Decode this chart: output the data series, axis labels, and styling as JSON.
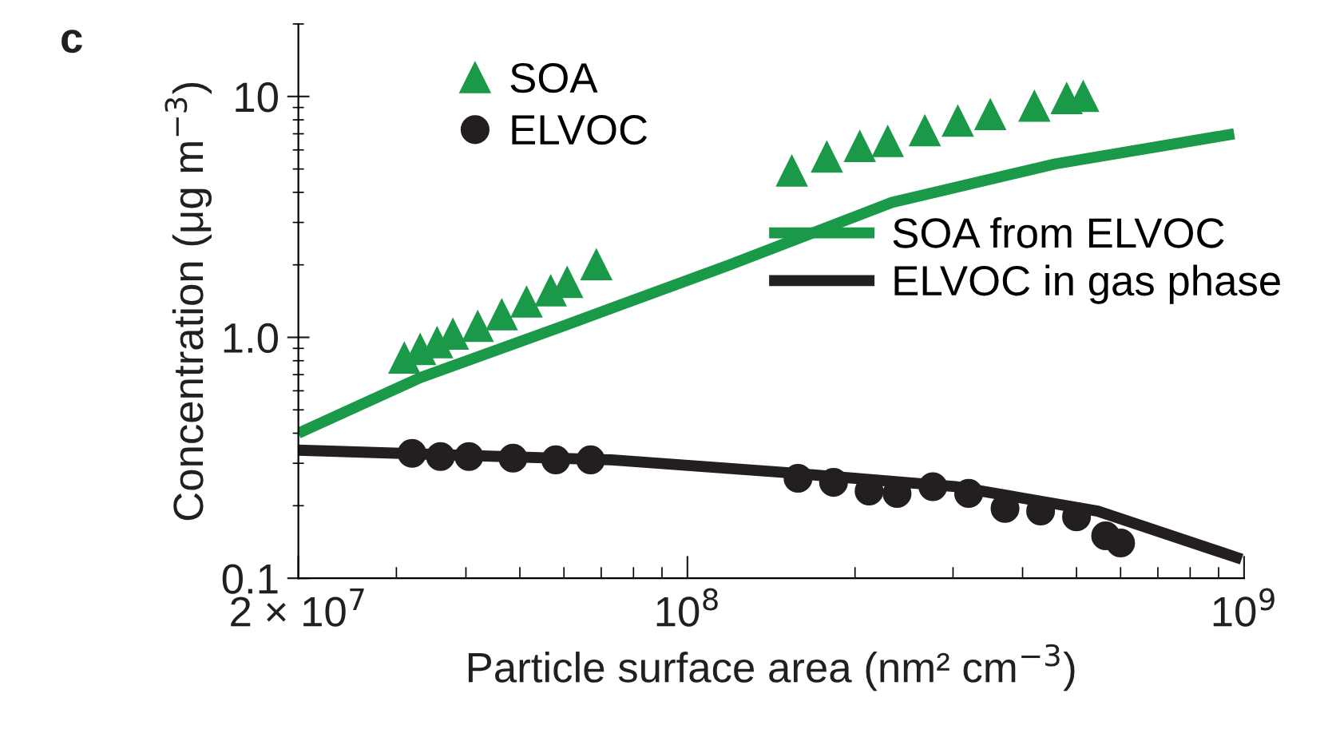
{
  "chart_data": {
    "type": "scatter",
    "log": "xy",
    "xlabel": "Particle surface area (nm² cm$^{−3}$)",
    "ylabel": "Concentration (μg m$^{−3}$)",
    "xlim": [
      20000000,
      1000000000
    ],
    "ylim": [
      0.1,
      20
    ],
    "xticks": [
      {
        "value": 20000000,
        "label": "2 × 10$^{7}$"
      },
      {
        "value": 100000000,
        "label": "10$^{8}$"
      },
      {
        "value": 1000000000,
        "label": "10$^{9}$"
      }
    ],
    "yticks": [
      0.1,
      {
        "value": 1,
        "label": "1.0"
      },
      10
    ],
    "grid": false,
    "legend": "top right",
    "annotations": [
      "c"
    ],
    "series": [
      {
        "name": "SOA",
        "marker": "triangle",
        "color": "#1a9a48",
        "x": [
          31000000,
          33100000,
          35500000,
          37900000,
          42000000,
          46400000,
          51400000,
          56800000,
          60800000,
          68600000,
          154000000,
          178000000,
          204000000,
          229000000,
          267000000,
          306000000,
          350000000,
          420000000,
          480000000,
          514000000
        ],
        "values": [
          0.82,
          0.89,
          0.95,
          1.03,
          1.11,
          1.24,
          1.4,
          1.56,
          1.69,
          2.0,
          4.9,
          5.6,
          6.2,
          6.5,
          7.2,
          7.9,
          8.4,
          9.1,
          9.8,
          10.0
        ]
      },
      {
        "name": "ELVOC",
        "marker": "circle",
        "color": "#231f20",
        "x": [
          32000000,
          36000000,
          40500000,
          48600000,
          58000000,
          67000000,
          158000000,
          183000000,
          212000000,
          238000000,
          276000000,
          320000000,
          372000000,
          431000000,
          500000000,
          564000000,
          600000000
        ],
        "values": [
          0.33,
          0.32,
          0.32,
          0.315,
          0.31,
          0.31,
          0.26,
          0.25,
          0.23,
          0.225,
          0.24,
          0.225,
          0.195,
          0.19,
          0.18,
          0.15,
          0.14
        ]
      },
      {
        "name": "SOA from ELVOC",
        "type": "line",
        "marker": "none",
        "line_style": "solid",
        "color": "#1a9a48",
        "x": [
          20000000,
          33100000,
          60800000,
          119000000,
          233000000,
          458000000,
          960000000
        ],
        "values": [
          0.4,
          0.68,
          1.13,
          2.0,
          3.63,
          5.25,
          7.0
        ]
      },
      {
        "name": "ELVOC in gas phase",
        "type": "line",
        "marker": "none",
        "line_style": "solid",
        "color": "#231f20",
        "x": [
          20000000,
          73000000,
          149000000,
          303000000,
          546000000,
          990000000
        ],
        "values": [
          0.34,
          0.31,
          0.275,
          0.24,
          0.19,
          0.12
        ]
      }
    ]
  }
}
